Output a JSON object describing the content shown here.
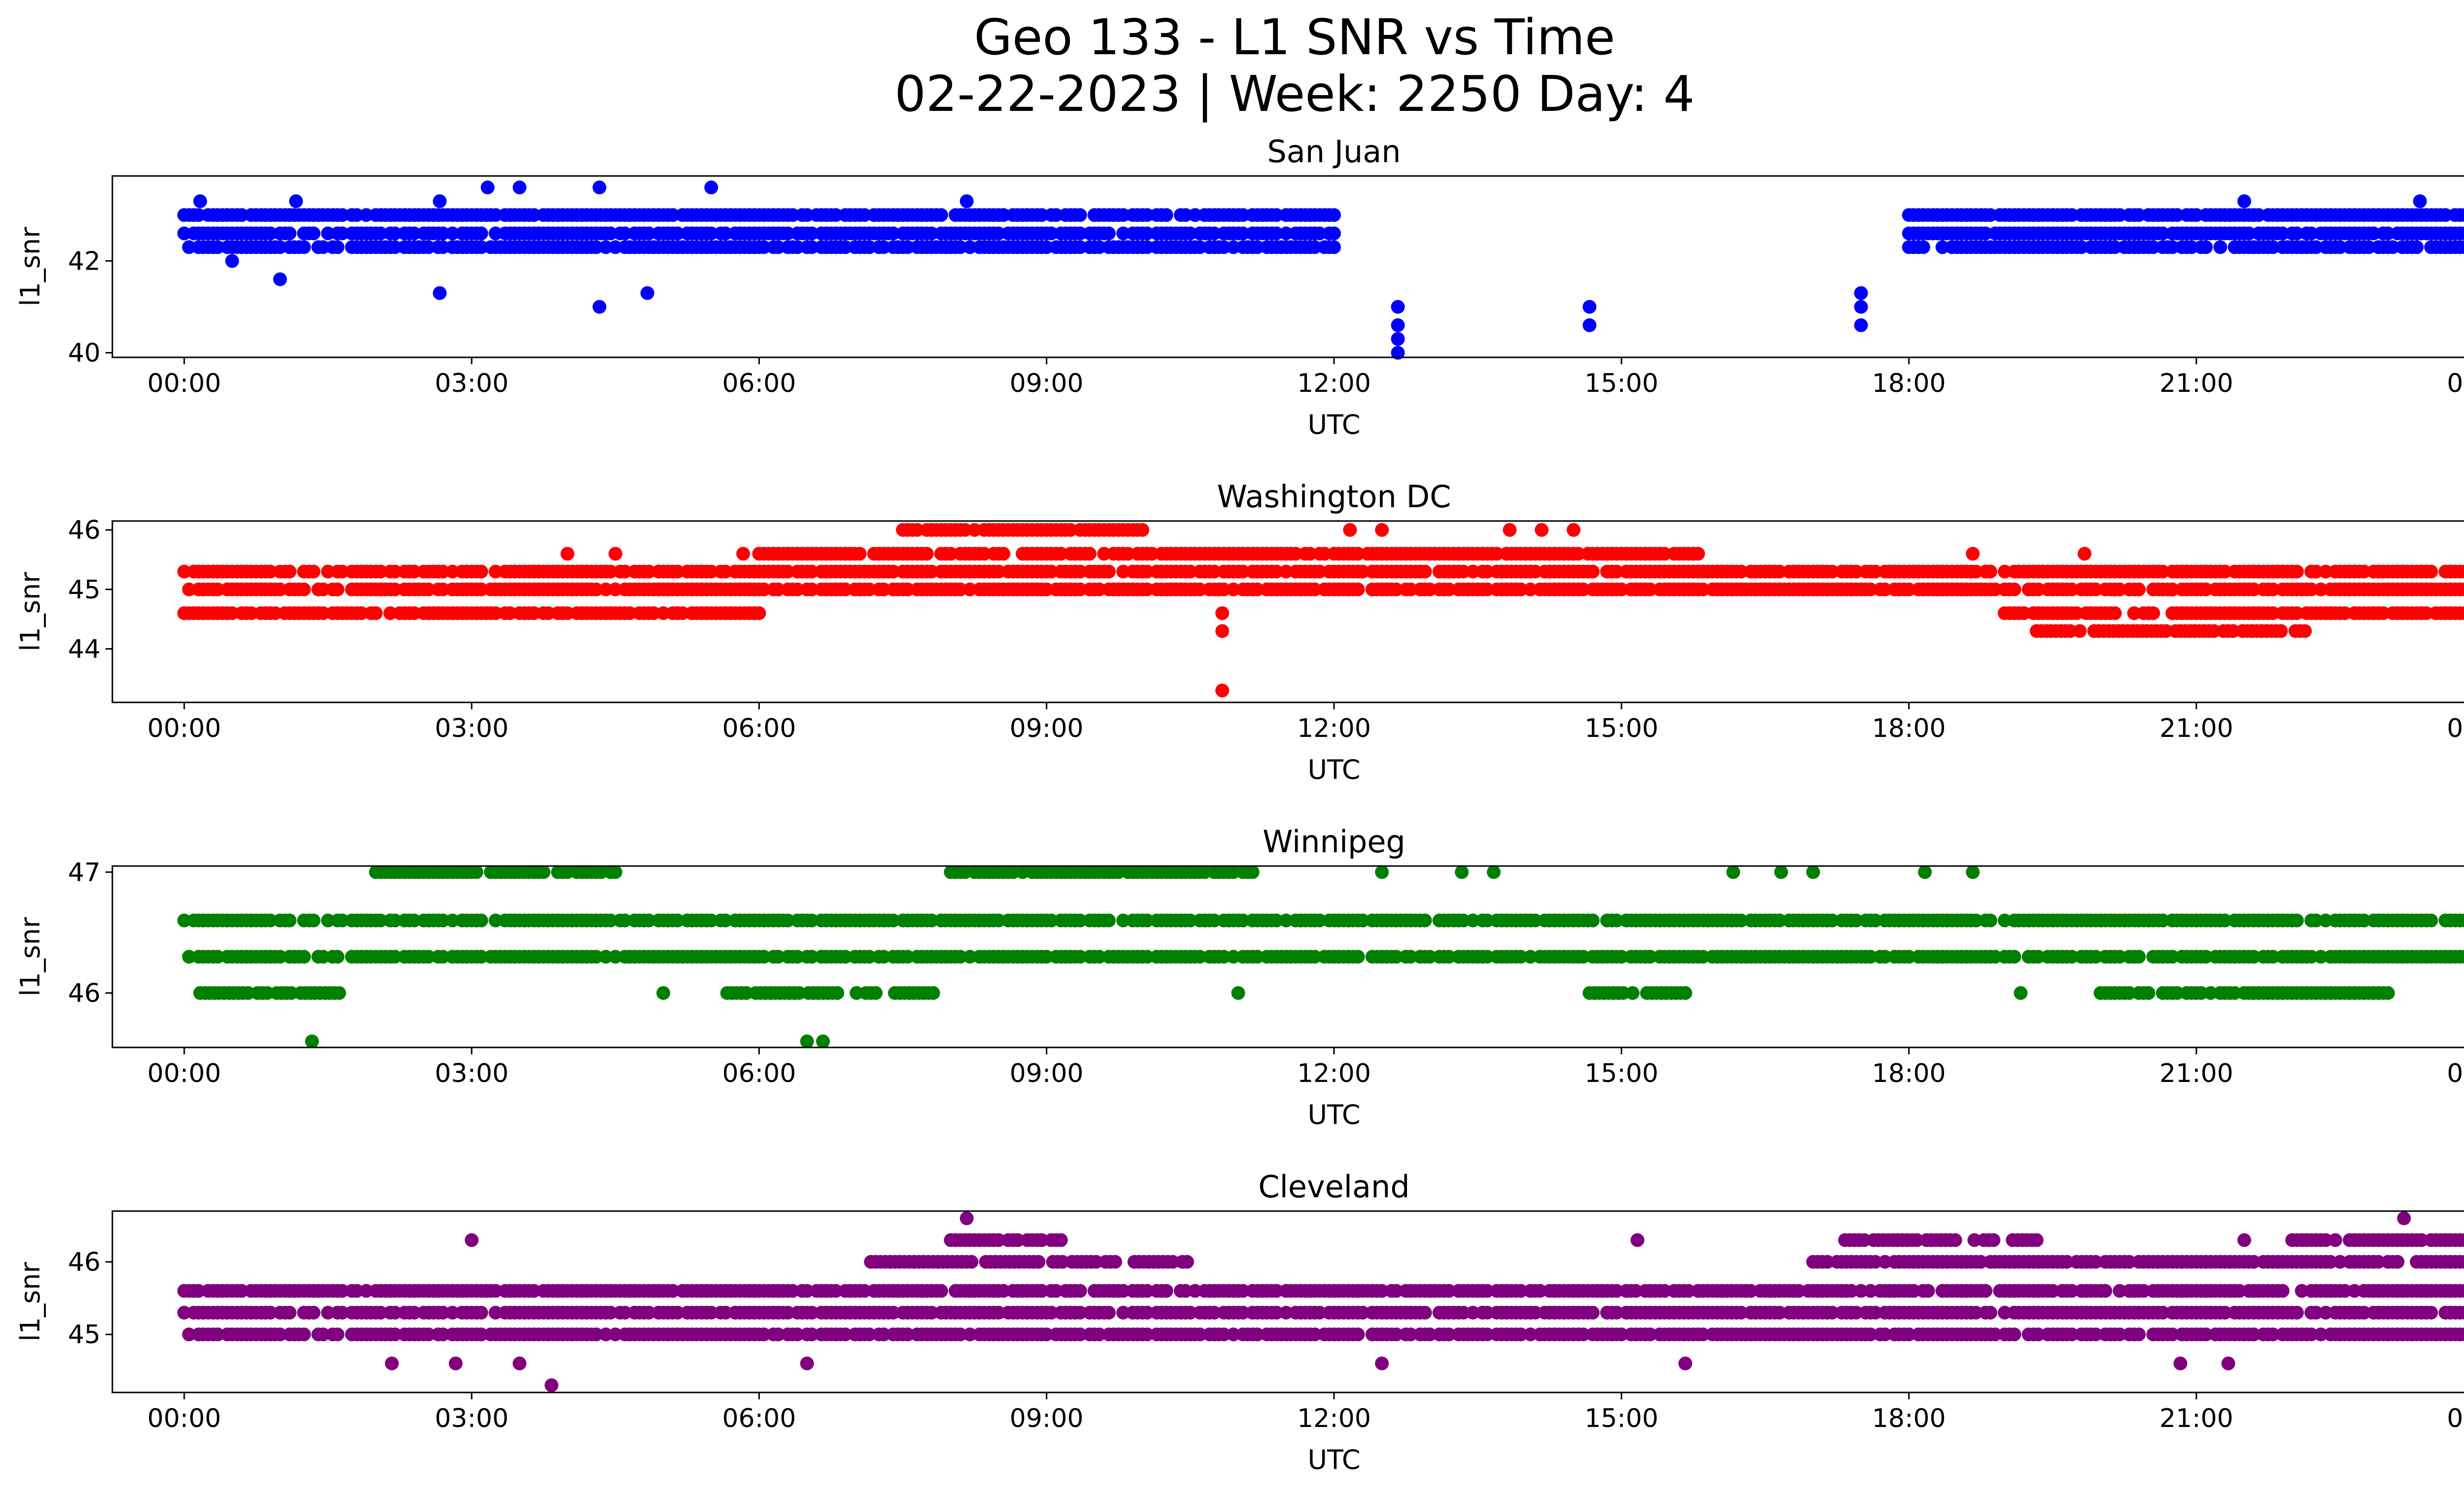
{
  "figure": {
    "title_line1": "Geo 133 - L1 SNR vs Time",
    "title_line2": "02-22-2023 | Week: 2250 Day: 4"
  },
  "chart_data": [
    {
      "type": "scatter",
      "title": "San Juan",
      "xlabel": "UTC",
      "ylabel": "l1_snr",
      "color": "#0000ff",
      "xlim": [
        "-00:45",
        "24:45"
      ],
      "ylim": [
        39.9,
        43.85
      ],
      "x_ticks": [
        "00:00",
        "03:00",
        "06:00",
        "09:00",
        "12:00",
        "15:00",
        "18:00",
        "21:00",
        "00:00"
      ],
      "y_ticks": [
        40,
        42
      ],
      "grid": false,
      "points": [
        {
          "t": "00:00-12:00",
          "snr": [
            42.3,
            42.6,
            43.0
          ]
        },
        {
          "t": "00:10",
          "snr": [
            43.3
          ]
        },
        {
          "t": "01:10",
          "snr": [
            43.3
          ]
        },
        {
          "t": "02:40",
          "snr": [
            43.3
          ]
        },
        {
          "t": "03:10",
          "snr": [
            43.6
          ]
        },
        {
          "t": "03:30",
          "snr": [
            43.6
          ]
        },
        {
          "t": "04:20",
          "snr": [
            43.6
          ]
        },
        {
          "t": "05:30",
          "snr": [
            43.6
          ]
        },
        {
          "t": "08:10",
          "snr": [
            43.3
          ]
        },
        {
          "t": "00:30",
          "snr": [
            42.0
          ]
        },
        {
          "t": "01:00",
          "snr": [
            41.6
          ]
        },
        {
          "t": "02:40",
          "snr": [
            41.3
          ]
        },
        {
          "t": "04:20",
          "snr": [
            41.0
          ]
        },
        {
          "t": "04:50",
          "snr": [
            41.3
          ]
        },
        {
          "t": "12:40",
          "snr": [
            40.0,
            40.3,
            40.6,
            41.0
          ]
        },
        {
          "t": "14:40",
          "snr": [
            40.6,
            41.0
          ]
        },
        {
          "t": "17:30",
          "snr": [
            40.6,
            41.0,
            41.3
          ]
        },
        {
          "t": "18:00-24:00",
          "snr": [
            42.3,
            42.6,
            43.0
          ]
        },
        {
          "t": "21:30",
          "snr": [
            43.3
          ]
        },
        {
          "t": "23:20",
          "snr": [
            43.3
          ]
        }
      ]
    },
    {
      "type": "scatter",
      "title": "Washington DC",
      "xlabel": "UTC",
      "ylabel": "l1_snr",
      "color": "#ff0000",
      "xlim": [
        "-00:45",
        "24:45"
      ],
      "ylim": [
        43.1,
        46.15
      ],
      "x_ticks": [
        "00:00",
        "03:00",
        "06:00",
        "09:00",
        "12:00",
        "15:00",
        "18:00",
        "21:00",
        "00:00"
      ],
      "y_ticks": [
        44,
        45,
        46
      ],
      "grid": false,
      "points": [
        {
          "t": "00:00-24:00",
          "snr": [
            45.0,
            45.3
          ]
        },
        {
          "t": "06:00-15:50",
          "snr": [
            45.6
          ]
        },
        {
          "t": "07:30-10:00",
          "snr": [
            46.0
          ]
        },
        {
          "t": "00:00-06:00",
          "snr": [
            44.6
          ]
        },
        {
          "t": "19:00-24:00",
          "snr": [
            44.6
          ]
        },
        {
          "t": "19:20-22:10",
          "snr": [
            44.3
          ]
        },
        {
          "t": "10:50",
          "snr": [
            43.3,
            44.3,
            44.6
          ]
        },
        {
          "t": "04:00",
          "snr": [
            45.6
          ]
        },
        {
          "t": "04:30",
          "snr": [
            45.6
          ]
        },
        {
          "t": "05:50",
          "snr": [
            45.6
          ]
        },
        {
          "t": "12:10",
          "snr": [
            46.0
          ]
        },
        {
          "t": "12:30",
          "snr": [
            46.0
          ]
        },
        {
          "t": "13:50",
          "snr": [
            46.0
          ]
        },
        {
          "t": "14:10",
          "snr": [
            46.0
          ]
        },
        {
          "t": "14:30",
          "snr": [
            46.0
          ]
        },
        {
          "t": "18:40",
          "snr": [
            45.6
          ]
        },
        {
          "t": "19:50",
          "snr": [
            45.6
          ]
        }
      ]
    },
    {
      "type": "scatter",
      "title": "Winnipeg",
      "xlabel": "UTC",
      "ylabel": "l1_snr",
      "color": "#008000",
      "xlim": [
        "-00:45",
        "24:45"
      ],
      "ylim": [
        45.55,
        47.05
      ],
      "x_ticks": [
        "00:00",
        "03:00",
        "06:00",
        "09:00",
        "12:00",
        "15:00",
        "18:00",
        "21:00",
        "00:00"
      ],
      "y_ticks": [
        46,
        47
      ],
      "grid": false,
      "points": [
        {
          "t": "00:00-24:00",
          "snr": [
            46.3,
            46.6
          ]
        },
        {
          "t": "02:00-04:30",
          "snr": [
            47.0
          ]
        },
        {
          "t": "08:00-11:10",
          "snr": [
            47.0
          ]
        },
        {
          "t": "00:10-01:40",
          "snr": [
            46.0
          ]
        },
        {
          "t": "05:40-07:50",
          "snr": [
            46.0
          ]
        },
        {
          "t": "14:40-15:40",
          "snr": [
            46.0
          ]
        },
        {
          "t": "20:00-23:00",
          "snr": [
            46.0
          ]
        },
        {
          "t": "01:20",
          "snr": [
            45.6
          ]
        },
        {
          "t": "06:30",
          "snr": [
            45.6
          ]
        },
        {
          "t": "06:40",
          "snr": [
            45.6
          ]
        },
        {
          "t": "12:30",
          "snr": [
            47.0
          ]
        },
        {
          "t": "13:20",
          "snr": [
            47.0
          ]
        },
        {
          "t": "13:40",
          "snr": [
            47.0
          ]
        },
        {
          "t": "16:10",
          "snr": [
            47.0
          ]
        },
        {
          "t": "16:40",
          "snr": [
            47.0
          ]
        },
        {
          "t": "17:00",
          "snr": [
            47.0
          ]
        },
        {
          "t": "18:10",
          "snr": [
            47.0
          ]
        },
        {
          "t": "18:40",
          "snr": [
            47.0
          ]
        },
        {
          "t": "05:00",
          "snr": [
            46.0
          ]
        },
        {
          "t": "11:00",
          "snr": [
            46.0
          ]
        },
        {
          "t": "19:10",
          "snr": [
            46.0
          ]
        }
      ]
    },
    {
      "type": "scatter",
      "title": "Cleveland",
      "xlabel": "UTC",
      "ylabel": "l1_snr",
      "color": "#800080",
      "xlim": [
        "-00:45",
        "24:45"
      ],
      "ylim": [
        44.2,
        46.7
      ],
      "x_ticks": [
        "00:00",
        "03:00",
        "06:00",
        "09:00",
        "12:00",
        "15:00",
        "18:00",
        "21:00",
        "00:00"
      ],
      "y_ticks": [
        45,
        46
      ],
      "grid": false,
      "points": [
        {
          "t": "00:00-24:00",
          "snr": [
            45.0,
            45.3,
            45.6
          ]
        },
        {
          "t": "07:10-10:30",
          "snr": [
            46.0
          ]
        },
        {
          "t": "17:00-24:00",
          "snr": [
            46.0
          ]
        },
        {
          "t": "08:00-09:10",
          "snr": [
            46.3
          ]
        },
        {
          "t": "17:20-19:20",
          "snr": [
            46.3
          ]
        },
        {
          "t": "22:00-24:00",
          "snr": [
            46.3
          ]
        },
        {
          "t": "08:10",
          "snr": [
            46.6
          ]
        },
        {
          "t": "23:10",
          "snr": [
            46.6
          ]
        },
        {
          "t": "02:10",
          "snr": [
            44.6
          ]
        },
        {
          "t": "02:50",
          "snr": [
            44.6
          ]
        },
        {
          "t": "03:30",
          "snr": [
            44.6
          ]
        },
        {
          "t": "03:50",
          "snr": [
            44.3
          ]
        },
        {
          "t": "06:30",
          "snr": [
            44.6
          ]
        },
        {
          "t": "12:30",
          "snr": [
            44.6
          ]
        },
        {
          "t": "15:40",
          "snr": [
            44.6
          ]
        },
        {
          "t": "20:50",
          "snr": [
            44.6
          ]
        },
        {
          "t": "21:20",
          "snr": [
            44.6
          ]
        },
        {
          "t": "03:00",
          "snr": [
            46.3
          ]
        },
        {
          "t": "15:10",
          "snr": [
            46.3
          ]
        },
        {
          "t": "21:30",
          "snr": [
            46.3
          ]
        }
      ]
    }
  ]
}
